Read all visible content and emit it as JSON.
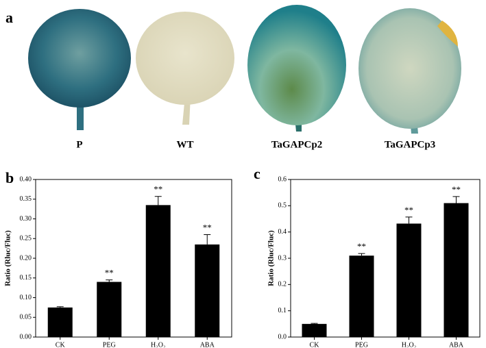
{
  "panel_a": {
    "label": "a",
    "leaves": [
      "P",
      "WT",
      "TaGAPCp2",
      "TaGAPCp3"
    ]
  },
  "chart_data": [
    {
      "type": "bar",
      "panel": "b",
      "y_label": "Ratio (Rluc/Fluc)",
      "color": "#000000",
      "categories": [
        "CK",
        "PEG",
        "H₂O₂",
        "ABA"
      ],
      "values": [
        0.075,
        0.14,
        0.335,
        0.235
      ],
      "errors": [
        0.002,
        0.005,
        0.022,
        0.025
      ],
      "annotations": [
        null,
        "**",
        "**",
        "**"
      ],
      "ylim": [
        0,
        0.4
      ],
      "yticks": [
        {
          "value": 0,
          "label": "0.00"
        },
        {
          "value": 0.05,
          "label": "0.05"
        },
        {
          "value": 0.1,
          "label": "0.10"
        },
        {
          "value": 0.15,
          "label": "0.15"
        },
        {
          "value": 0.2,
          "label": "0.20"
        },
        {
          "value": 0.25,
          "label": "0.25"
        },
        {
          "value": 0.3,
          "label": "0.30"
        },
        {
          "value": 0.35,
          "label": "0.35"
        },
        {
          "value": 0.4,
          "label": "0.40"
        }
      ]
    },
    {
      "type": "bar",
      "panel": "c",
      "y_label": "Ratio (Rluc/Fluc)",
      "color": "#000000",
      "categories": [
        "CK",
        "PEG",
        "H₂O₂",
        "ABA"
      ],
      "values": [
        0.05,
        0.31,
        0.432,
        0.51
      ],
      "errors": [
        0.002,
        0.008,
        0.025,
        0.025
      ],
      "annotations": [
        null,
        "**",
        "**",
        "**"
      ],
      "ylim": [
        0,
        0.6
      ],
      "yticks": [
        {
          "value": 0,
          "label": "0.0"
        },
        {
          "value": 0.1,
          "label": "0.1"
        },
        {
          "value": 0.2,
          "label": "0.2"
        },
        {
          "value": 0.3,
          "label": "0.3"
        },
        {
          "value": 0.4,
          "label": "0.4"
        },
        {
          "value": 0.5,
          "label": "0.5"
        },
        {
          "value": 0.6,
          "label": "0.6"
        }
      ]
    }
  ]
}
